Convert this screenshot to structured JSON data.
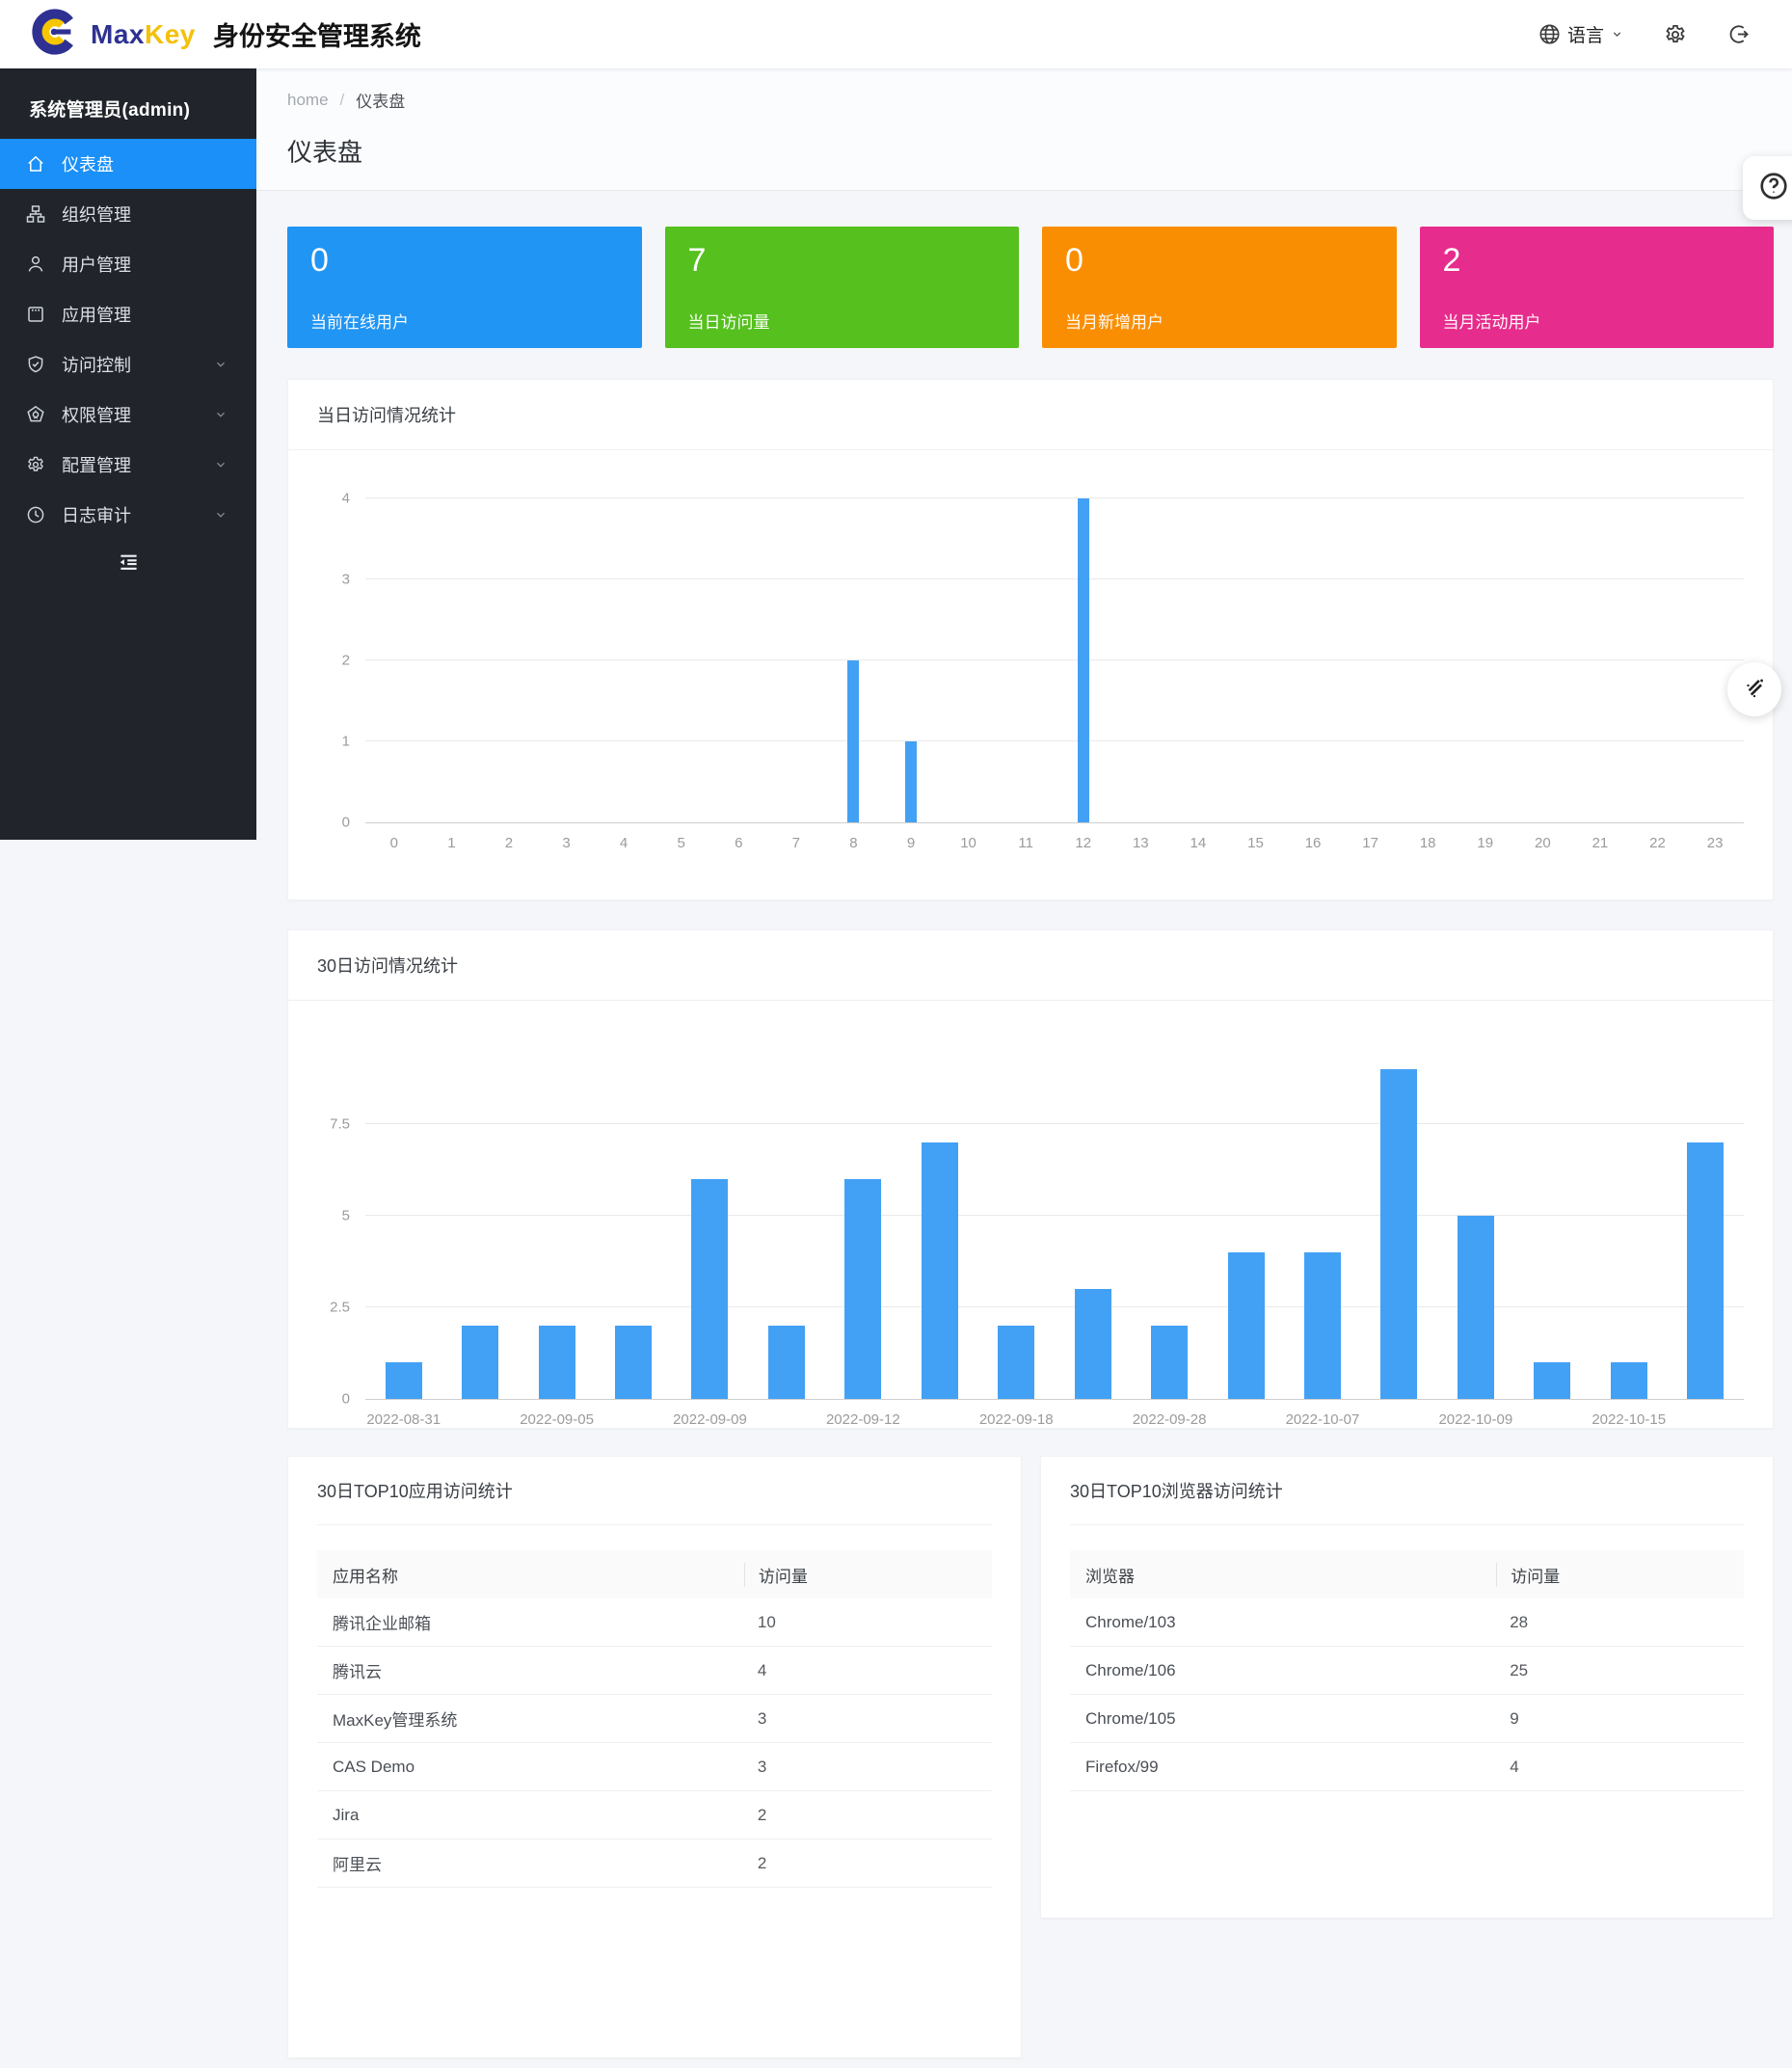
{
  "header": {
    "brand_max": "Max",
    "brand_key": "Key",
    "brand_suffix": "身份安全管理系统",
    "language_label": "语言"
  },
  "sidebar": {
    "user": "系统管理员(admin)",
    "items": [
      {
        "label": "仪表盘",
        "icon": "home",
        "active": true,
        "chevron": false
      },
      {
        "label": "组织管理",
        "icon": "org",
        "active": false,
        "chevron": false
      },
      {
        "label": "用户管理",
        "icon": "user",
        "active": false,
        "chevron": false
      },
      {
        "label": "应用管理",
        "icon": "app",
        "active": false,
        "chevron": false
      },
      {
        "label": "访问控制",
        "icon": "shield",
        "active": false,
        "chevron": true
      },
      {
        "label": "权限管理",
        "icon": "permission",
        "active": false,
        "chevron": true
      },
      {
        "label": "配置管理",
        "icon": "gear",
        "active": false,
        "chevron": true
      },
      {
        "label": "日志审计",
        "icon": "clock",
        "active": false,
        "chevron": true
      }
    ]
  },
  "breadcrumb": {
    "home": "home",
    "separator": "/",
    "current": "仪表盘"
  },
  "page_title": "仪表盘",
  "stat_cards": [
    {
      "value": "0",
      "label": "当前在线用户",
      "color": "#2095f3"
    },
    {
      "value": "7",
      "label": "当日访问量",
      "color": "#55c01e"
    },
    {
      "value": "0",
      "label": "当月新增用户",
      "color": "#fa8e02"
    },
    {
      "value": "2",
      "label": "当月活动用户",
      "color": "#e62c8c"
    }
  ],
  "chart_data": [
    {
      "type": "bar",
      "title": "当日访问情况统计",
      "categories": [
        "0",
        "1",
        "2",
        "3",
        "4",
        "5",
        "6",
        "7",
        "8",
        "9",
        "10",
        "11",
        "12",
        "13",
        "14",
        "15",
        "16",
        "17",
        "18",
        "19",
        "20",
        "21",
        "22",
        "23"
      ],
      "values": [
        0,
        0,
        0,
        0,
        0,
        0,
        0,
        0,
        2,
        1,
        0,
        0,
        4,
        0,
        0,
        0,
        0,
        0,
        0,
        0,
        0,
        0,
        0,
        0
      ],
      "xlabel": "",
      "ylabel": "",
      "ylim": [
        0,
        4
      ],
      "yticks": [
        0,
        1,
        2,
        3,
        4
      ],
      "grid": true,
      "legend": "none",
      "bar_color": "#42a1f5"
    },
    {
      "type": "bar",
      "title": "30日访问情况统计",
      "x_labels": [
        "2022-08-31",
        "2022-09-05",
        "2022-09-09",
        "2022-09-12",
        "2022-09-18",
        "2022-09-28",
        "2022-10-07",
        "2022-10-09",
        "2022-10-15"
      ],
      "label_every": 2,
      "values": [
        1,
        2,
        2,
        2,
        6,
        2,
        6,
        7,
        2,
        3,
        2,
        4,
        4,
        9,
        5,
        1,
        1,
        7
      ],
      "xlabel": "",
      "ylabel": "",
      "ylim": [
        0,
        10
      ],
      "yticks": [
        0,
        2.5,
        5,
        7.5
      ],
      "grid": true,
      "legend": "none",
      "bar_color": "#42a1f5"
    }
  ],
  "tables": [
    {
      "title": "30日TOP10应用访问统计",
      "columns": [
        "应用名称",
        "访问量"
      ],
      "rows": [
        [
          "腾讯企业邮箱",
          "10"
        ],
        [
          "腾讯云",
          "4"
        ],
        [
          "MaxKey管理系统",
          "3"
        ],
        [
          "CAS Demo",
          "3"
        ],
        [
          "Jira",
          "2"
        ],
        [
          "阿里云",
          "2"
        ]
      ]
    },
    {
      "title": "30日TOP10浏览器访问统计",
      "columns": [
        "浏览器",
        "访问量"
      ],
      "rows": [
        [
          "Chrome/103",
          "28"
        ],
        [
          "Chrome/106",
          "25"
        ],
        [
          "Chrome/105",
          "9"
        ],
        [
          "Firefox/99",
          "4"
        ]
      ]
    }
  ]
}
